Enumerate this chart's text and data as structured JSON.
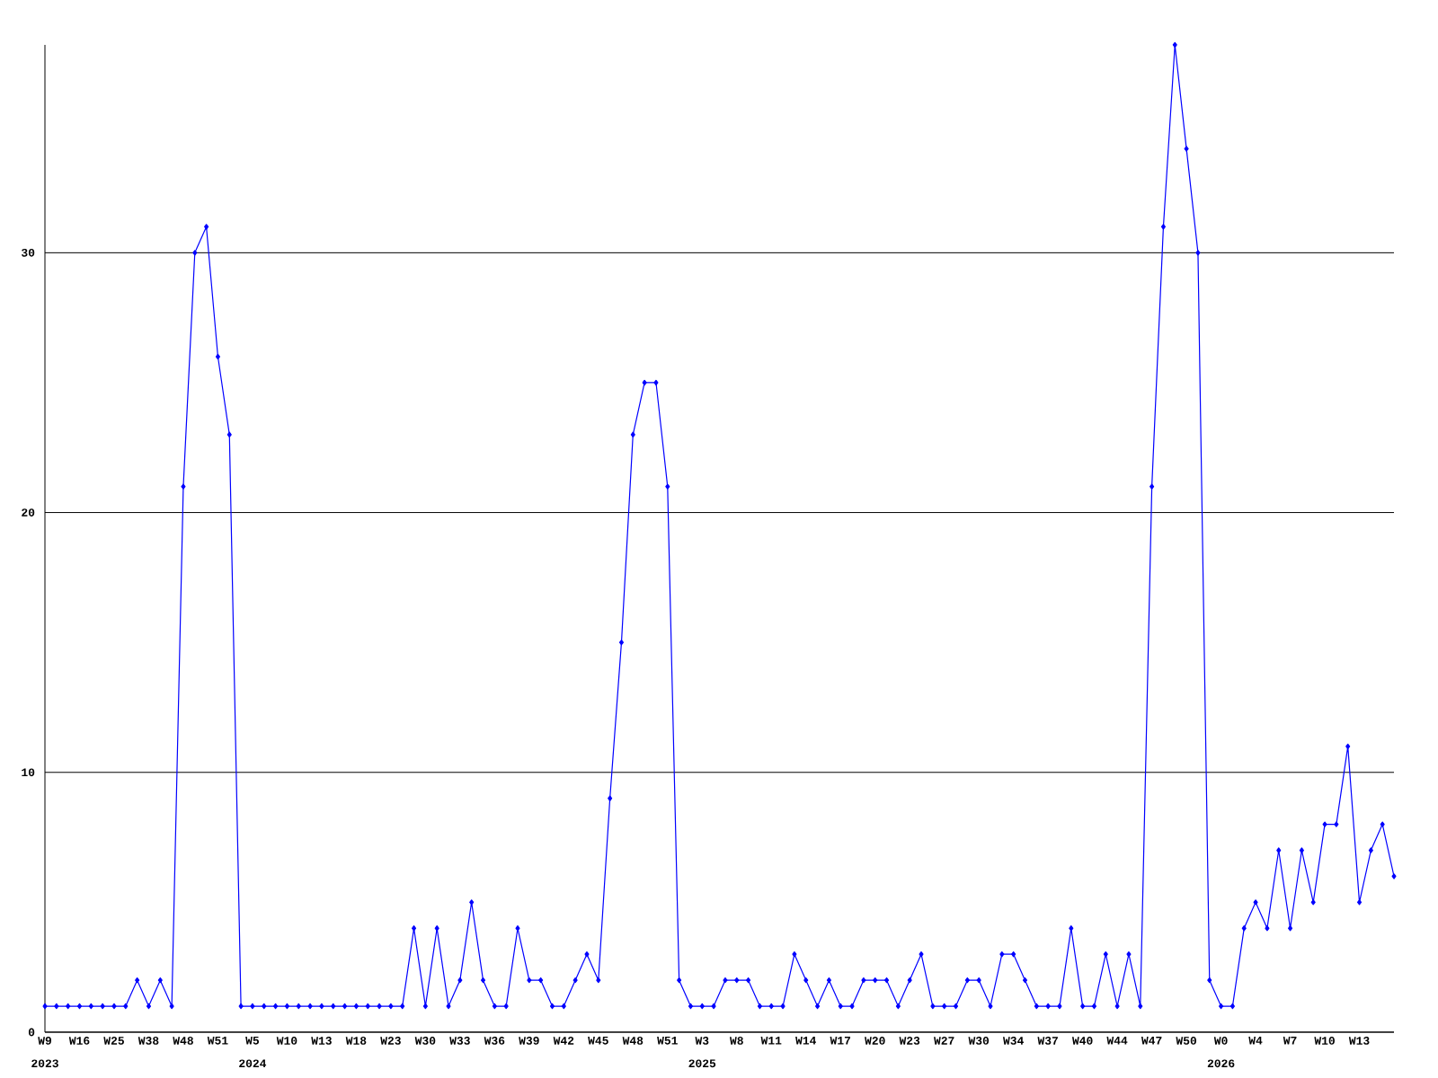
{
  "chart_data": {
    "type": "line",
    "categories": [
      "W9",
      null,
      null,
      "W16",
      null,
      null,
      "W25",
      null,
      null,
      "W38",
      null,
      null,
      "W48",
      null,
      null,
      "W51",
      null,
      null,
      "W5",
      null,
      null,
      "W10",
      null,
      null,
      "W13",
      null,
      null,
      "W18",
      null,
      null,
      "W23",
      null,
      null,
      "W30",
      null,
      null,
      "W33",
      null,
      null,
      "W36",
      null,
      null,
      "W39",
      null,
      null,
      "W42",
      null,
      null,
      "W45",
      null,
      null,
      "W48",
      null,
      null,
      "W51",
      null,
      null,
      "W3",
      null,
      null,
      "W8",
      null,
      null,
      "W11",
      null,
      null,
      "W14",
      null,
      null,
      "W17",
      null,
      null,
      "W20",
      null,
      null,
      "W23",
      null,
      null,
      "W27",
      null,
      null,
      "W30",
      null,
      null,
      "W34",
      null,
      null,
      "W37",
      null,
      null,
      "W40",
      null,
      null,
      "W44",
      null,
      null,
      "W47",
      null,
      null,
      "W50",
      null,
      null,
      "W0",
      null,
      null,
      "W4",
      null,
      null,
      "W7",
      null,
      null,
      "W10",
      null,
      null,
      "W13",
      null,
      null,
      null
    ],
    "values": [
      1,
      1,
      1,
      1,
      1,
      1,
      1,
      1,
      2,
      1,
      2,
      1,
      21,
      30,
      31,
      26,
      23,
      1,
      1,
      1,
      1,
      1,
      1,
      1,
      1,
      1,
      1,
      1,
      1,
      1,
      1,
      1,
      4,
      1,
      4,
      1,
      2,
      5,
      2,
      1,
      1,
      4,
      2,
      2,
      1,
      1,
      2,
      3,
      2,
      9,
      15,
      23,
      25,
      25,
      21,
      2,
      1,
      1,
      1,
      2,
      2,
      2,
      1,
      1,
      1,
      3,
      2,
      1,
      2,
      1,
      1,
      2,
      2,
      2,
      1,
      2,
      3,
      1,
      1,
      1,
      2,
      2,
      1,
      3,
      3,
      2,
      1,
      1,
      1,
      4,
      1,
      1,
      3,
      1,
      3,
      1,
      21,
      31,
      38,
      34,
      30,
      2,
      1,
      1,
      4,
      5,
      4,
      7,
      4,
      7,
      5,
      8,
      8,
      11,
      5,
      7,
      8,
      6
    ],
    "color": "#0000ff",
    "ylim": [
      0,
      38
    ],
    "yticks": [
      0,
      10,
      20,
      30
    ],
    "grid": "y",
    "marker": "diamond",
    "annotations": [
      "2023",
      "2024",
      "2025",
      "2026"
    ]
  }
}
